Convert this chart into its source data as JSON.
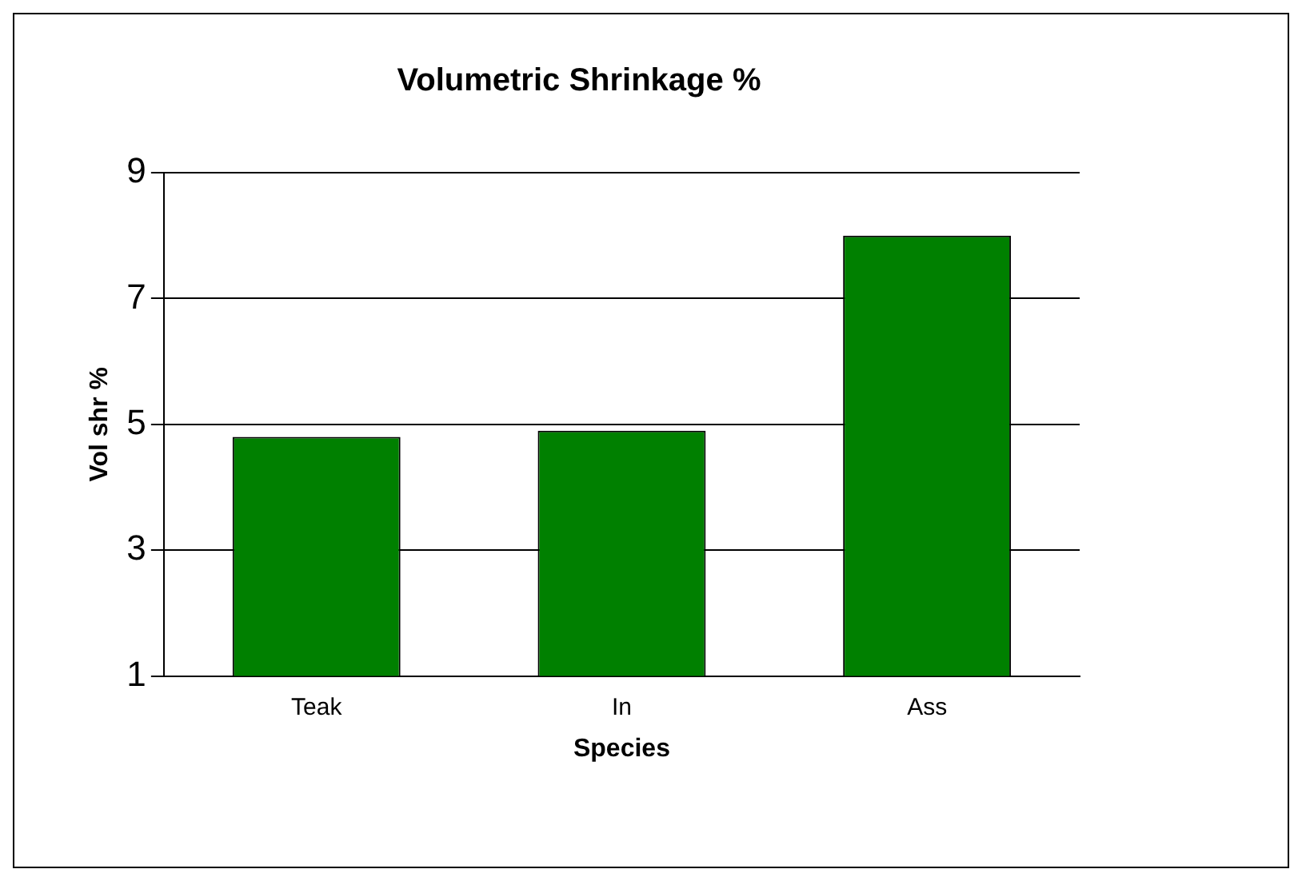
{
  "chart_data": {
    "type": "bar",
    "title": "Volumetric Shrinkage %",
    "xlabel": "Species",
    "ylabel": "Vol shr %",
    "categories": [
      "Teak",
      "In",
      "Ass"
    ],
    "values": [
      4.8,
      4.9,
      8.0
    ],
    "color": "#008000",
    "ylim": [
      1,
      9
    ],
    "yticks": [
      1,
      3,
      5,
      7,
      9
    ],
    "grid": "y",
    "legend": false
  }
}
